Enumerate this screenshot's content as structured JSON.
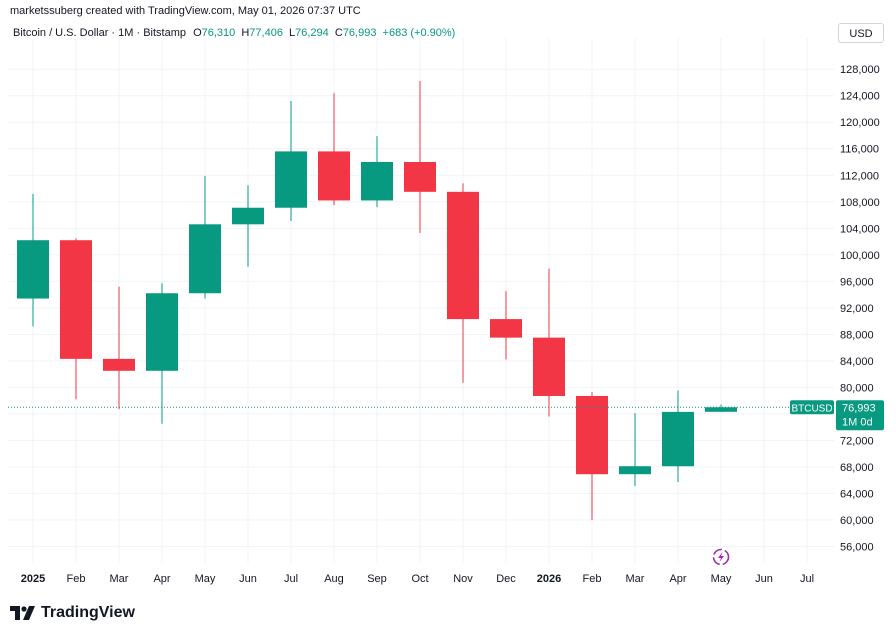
{
  "header": {
    "attribution": "marketssuberg created with TradingView.com, May 01, 2026 07:37 UTC"
  },
  "legend": {
    "symbol_title": "Bitcoin / U.S. Dollar · 1M · Bitstamp",
    "o_label": "O",
    "o_value": "76,310",
    "h_label": "H",
    "h_value": "77,406",
    "l_label": "L",
    "l_value": "76,294",
    "c_label": "C",
    "c_value": "76,993",
    "change": "+683 (+0.90%)"
  },
  "currency_button": {
    "label": "USD"
  },
  "price_tag": {
    "symbol": "BTCUSD",
    "price": "76,993",
    "countdown": "1M 0d"
  },
  "footer": {
    "brand": "TradingView"
  },
  "colors": {
    "up": "#089981",
    "down": "#f23645",
    "grid": "#f0f3fa",
    "text": "#131722",
    "price_line": "#089981",
    "event_icon": "#9c27b0"
  },
  "icons": [
    "tradingview-logo-icon",
    "event-lightning-icon"
  ],
  "chart_data": {
    "type": "candlestick",
    "title": "Bitcoin / U.S. Dollar · 1M · Bitstamp",
    "x_labels": [
      "2025",
      "Feb",
      "Mar",
      "Apr",
      "May",
      "Jun",
      "Jul",
      "Aug",
      "Sep",
      "Oct",
      "Nov",
      "Dec",
      "2026",
      "Feb",
      "Mar",
      "Apr",
      "May",
      "Jun",
      "Jul"
    ],
    "y_ticks": [
      56000,
      60000,
      64000,
      68000,
      72000,
      76000,
      80000,
      84000,
      88000,
      92000,
      96000,
      100000,
      104000,
      108000,
      112000,
      116000,
      120000,
      124000,
      128000
    ],
    "ylim": [
      53500,
      131200
    ],
    "axis_position": "right",
    "grid": true,
    "current_price": 76993,
    "candles": [
      {
        "month": "2025-01",
        "o": 93400,
        "h": 109200,
        "l": 89200,
        "c": 102200
      },
      {
        "month": "2025-02",
        "o": 102200,
        "h": 102500,
        "l": 78200,
        "c": 84300
      },
      {
        "month": "2025-03",
        "o": 84300,
        "h": 95200,
        "l": 76700,
        "c": 82500
      },
      {
        "month": "2025-04",
        "o": 82500,
        "h": 95700,
        "l": 74500,
        "c": 94200
      },
      {
        "month": "2025-05",
        "o": 94200,
        "h": 111900,
        "l": 93400,
        "c": 104600
      },
      {
        "month": "2025-06",
        "o": 104600,
        "h": 110500,
        "l": 98200,
        "c": 107100
      },
      {
        "month": "2025-07",
        "o": 107100,
        "h": 123200,
        "l": 105100,
        "c": 115600
      },
      {
        "month": "2025-08",
        "o": 115600,
        "h": 124400,
        "l": 107500,
        "c": 108200
      },
      {
        "month": "2025-09",
        "o": 108200,
        "h": 117900,
        "l": 107200,
        "c": 114000
      },
      {
        "month": "2025-10",
        "o": 114000,
        "h": 126200,
        "l": 103300,
        "c": 109500
      },
      {
        "month": "2025-11",
        "o": 109500,
        "h": 110800,
        "l": 80700,
        "c": 90300
      },
      {
        "month": "2025-12",
        "o": 90300,
        "h": 94500,
        "l": 84200,
        "c": 87500
      },
      {
        "month": "2026-01",
        "o": 87500,
        "h": 97900,
        "l": 75600,
        "c": 78700
      },
      {
        "month": "2026-02",
        "o": 78700,
        "h": 79300,
        "l": 60000,
        "c": 66900
      },
      {
        "month": "2026-03",
        "o": 66900,
        "h": 76100,
        "l": 65100,
        "c": 68100
      },
      {
        "month": "2026-04",
        "o": 68100,
        "h": 79500,
        "l": 65700,
        "c": 76300
      },
      {
        "month": "2026-05",
        "o": 76310,
        "h": 77406,
        "l": 76294,
        "c": 76993
      }
    ]
  }
}
